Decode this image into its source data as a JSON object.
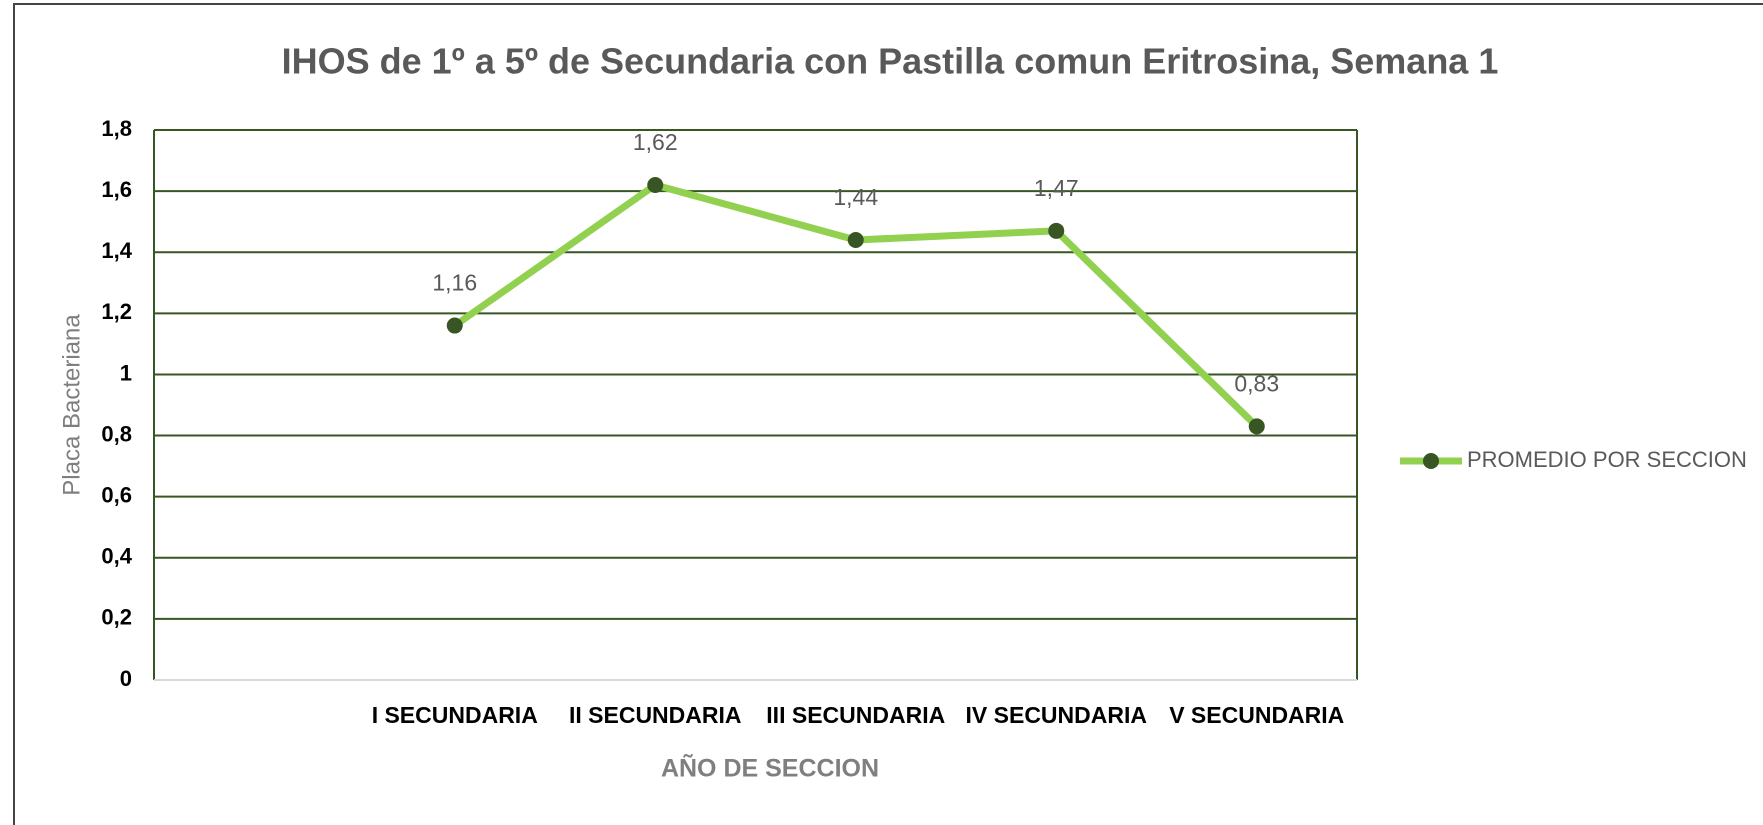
{
  "chart_data": {
    "type": "line",
    "title": "IHOS de 1º a 5º de Secundaria con Pastilla comun Eritrosina, Semana 1",
    "x_label": "AÑO DE SECCION",
    "y_label": "Placa Bacteriana",
    "categories": [
      null,
      "I SECUNDARIA",
      "II SECUNDARIA",
      "III SECUNDARIA",
      "IV SECUNDARIA",
      "V SECUNDARIA"
    ],
    "series": [
      {
        "name": "PROMEDIO POR SECCION",
        "color": "#92d050",
        "marker_color": "#375623",
        "values": [
          null,
          1.16,
          1.62,
          1.44,
          1.47,
          0.83
        ],
        "value_labels": [
          null,
          "1,16",
          "1,62",
          "1,44",
          "1,47",
          "0,83"
        ]
      }
    ],
    "ylim": [
      0,
      1.8
    ],
    "yticks": [
      0,
      {
        "value": 0.2,
        "label": "0,2"
      },
      {
        "value": 0.4,
        "label": "0,4"
      },
      {
        "value": 0.6,
        "label": "0,6"
      },
      {
        "value": 0.8,
        "label": "0,8"
      },
      1,
      {
        "value": 1.2,
        "label": "1,2"
      },
      {
        "value": 1.4,
        "label": "1,4"
      },
      {
        "value": 1.6,
        "label": "1,6"
      },
      {
        "value": 1.8,
        "label": "1,8"
      }
    ],
    "grid": true,
    "grid_color": "#375623",
    "legend": "right"
  }
}
